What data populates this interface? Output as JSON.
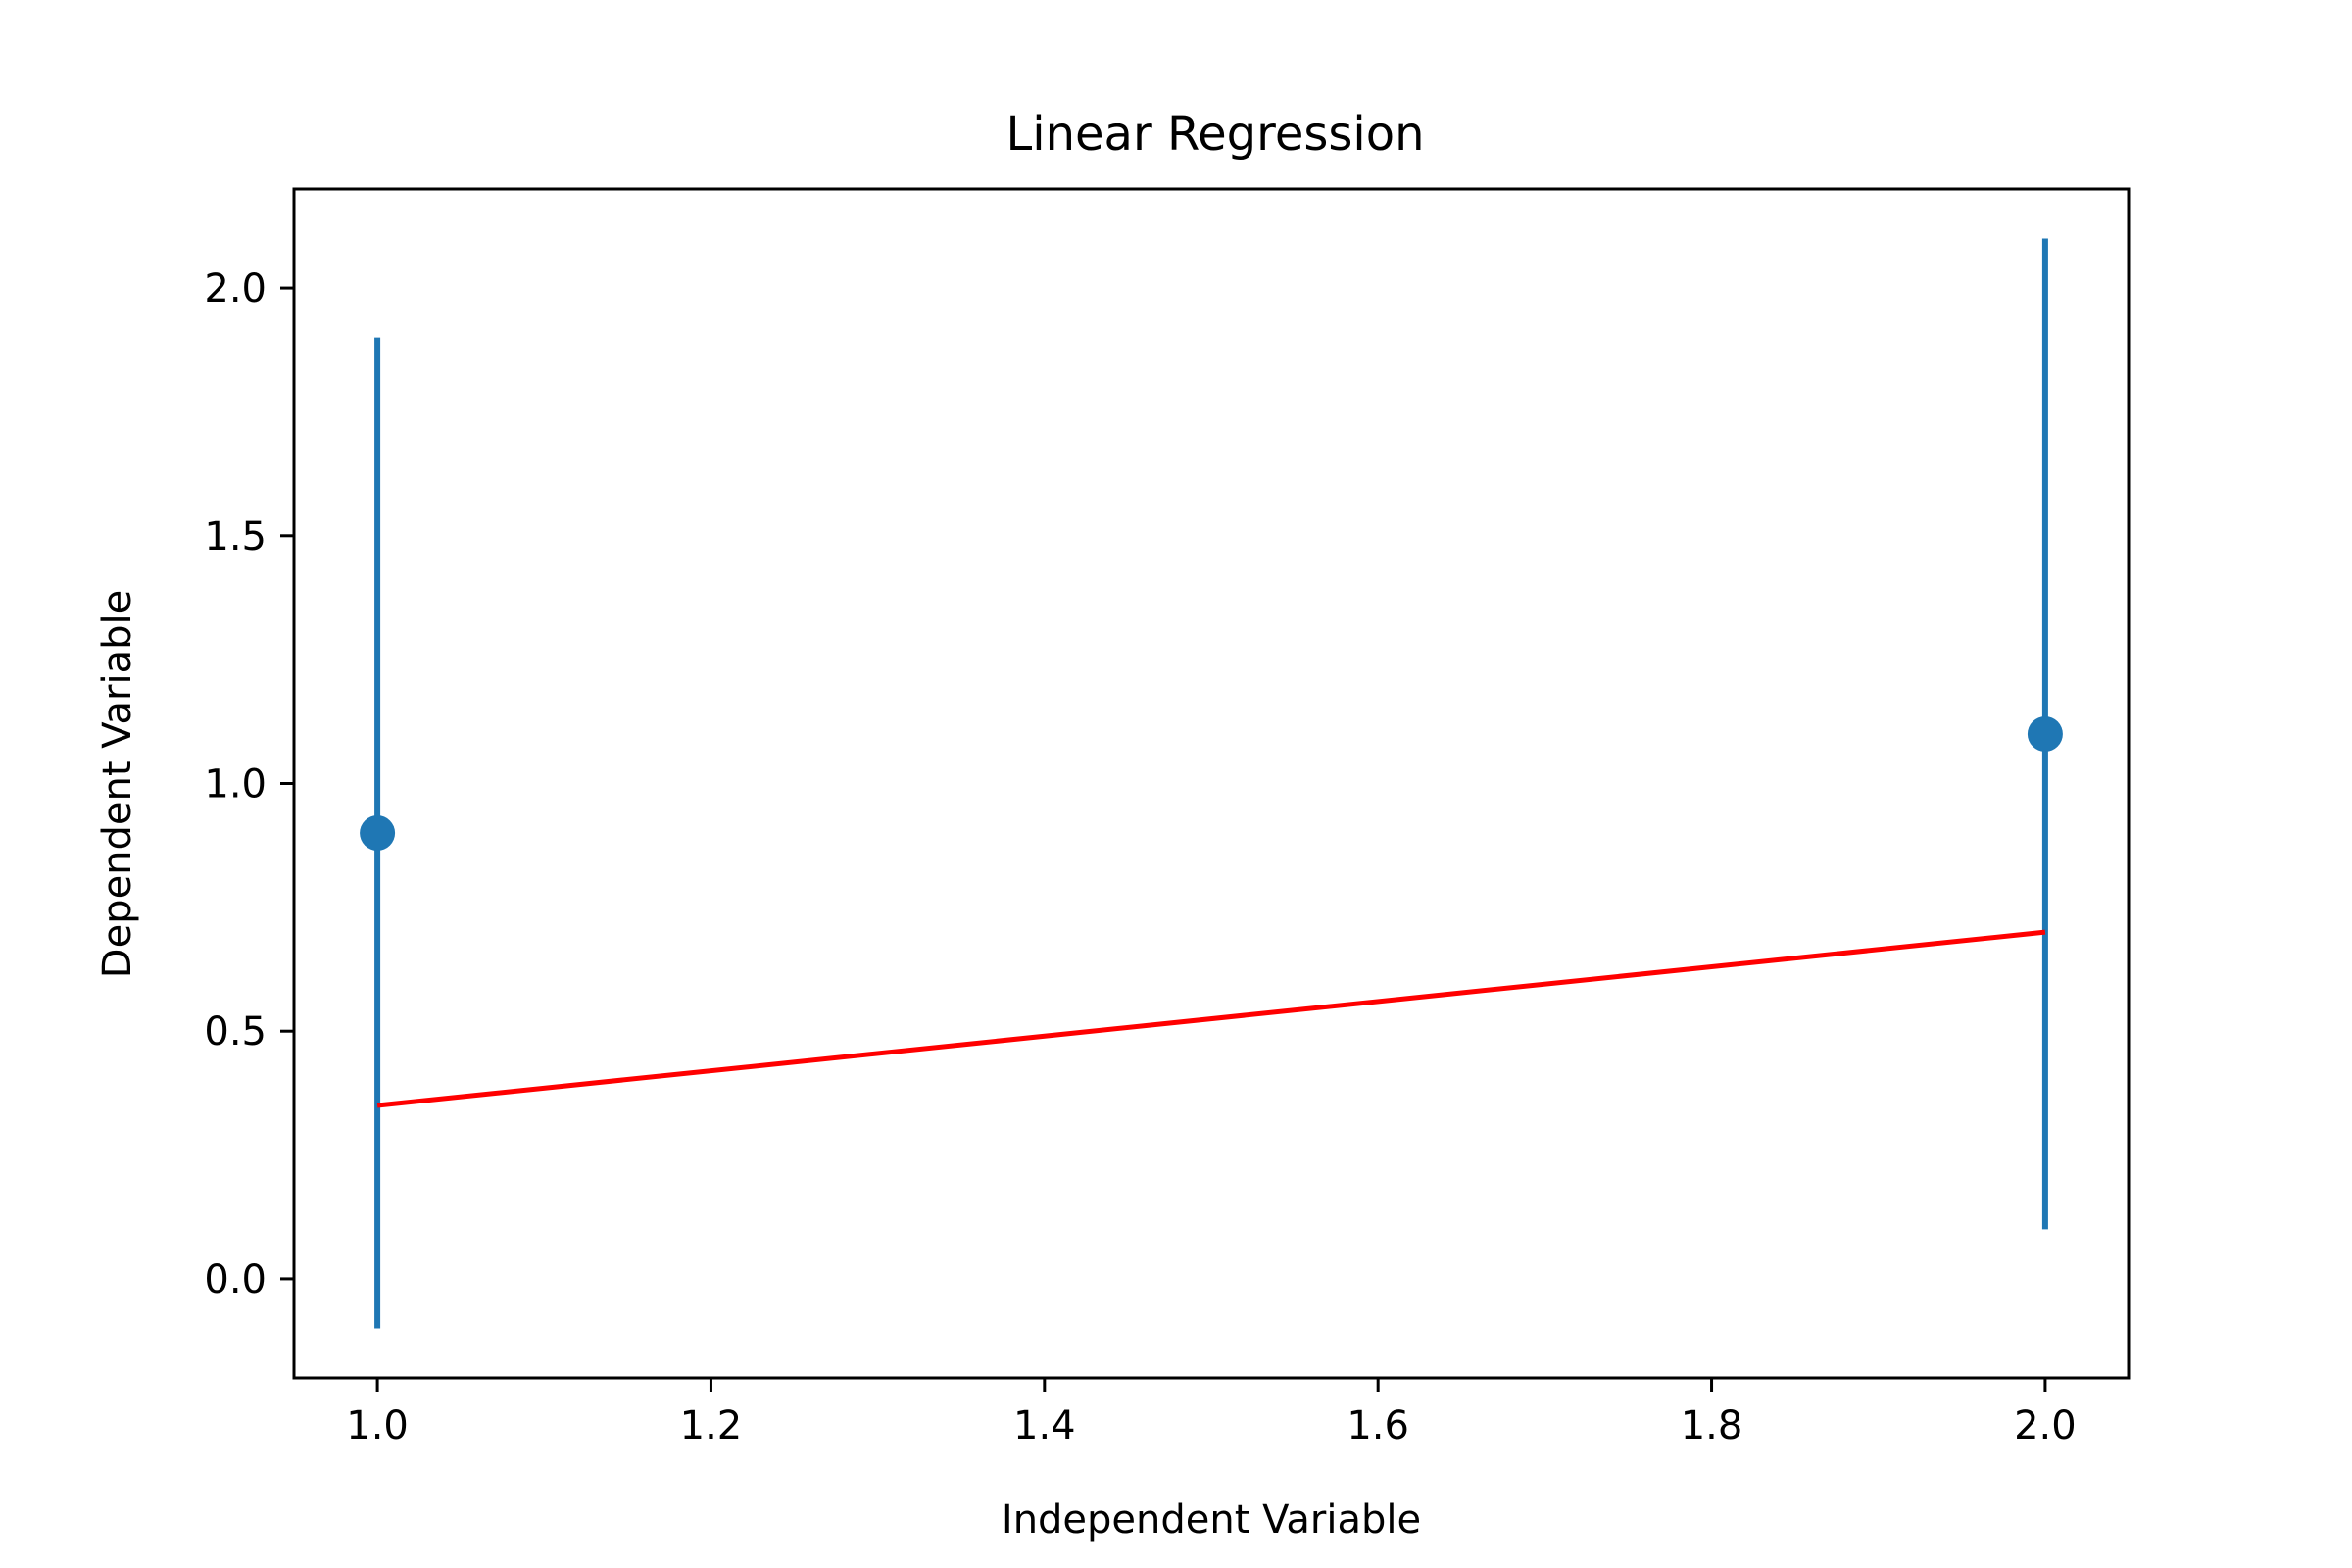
{
  "chart_data": {
    "type": "scatter",
    "title": "Linear Regression",
    "xlabel": "Independent Variable",
    "ylabel": "Dependent Variable",
    "xlim": [
      0.95,
      2.05
    ],
    "ylim": [
      -0.2,
      2.2
    ],
    "x_ticks": [
      1.0,
      1.2,
      1.4,
      1.6,
      1.8,
      2.0
    ],
    "x_tick_labels": [
      "1.0",
      "1.2",
      "1.4",
      "1.6",
      "1.8",
      "2.0"
    ],
    "y_ticks": [
      0.0,
      0.5,
      1.0,
      1.5,
      2.0
    ],
    "y_tick_labels": [
      "0.0",
      "0.5",
      "1.0",
      "1.5",
      "2.0"
    ],
    "grid": false,
    "legend": "none",
    "series": [
      {
        "kind": "errorbar",
        "color": "#1f77b4",
        "points": [
          {
            "x": 1.0,
            "y": 0.9,
            "yerr": 1.0
          },
          {
            "x": 2.0,
            "y": 1.1,
            "yerr": 1.0
          }
        ]
      },
      {
        "kind": "line",
        "color": "#ff0000",
        "points": [
          {
            "x": 1.0,
            "y": 0.35
          },
          {
            "x": 2.0,
            "y": 0.7
          }
        ]
      }
    ]
  }
}
